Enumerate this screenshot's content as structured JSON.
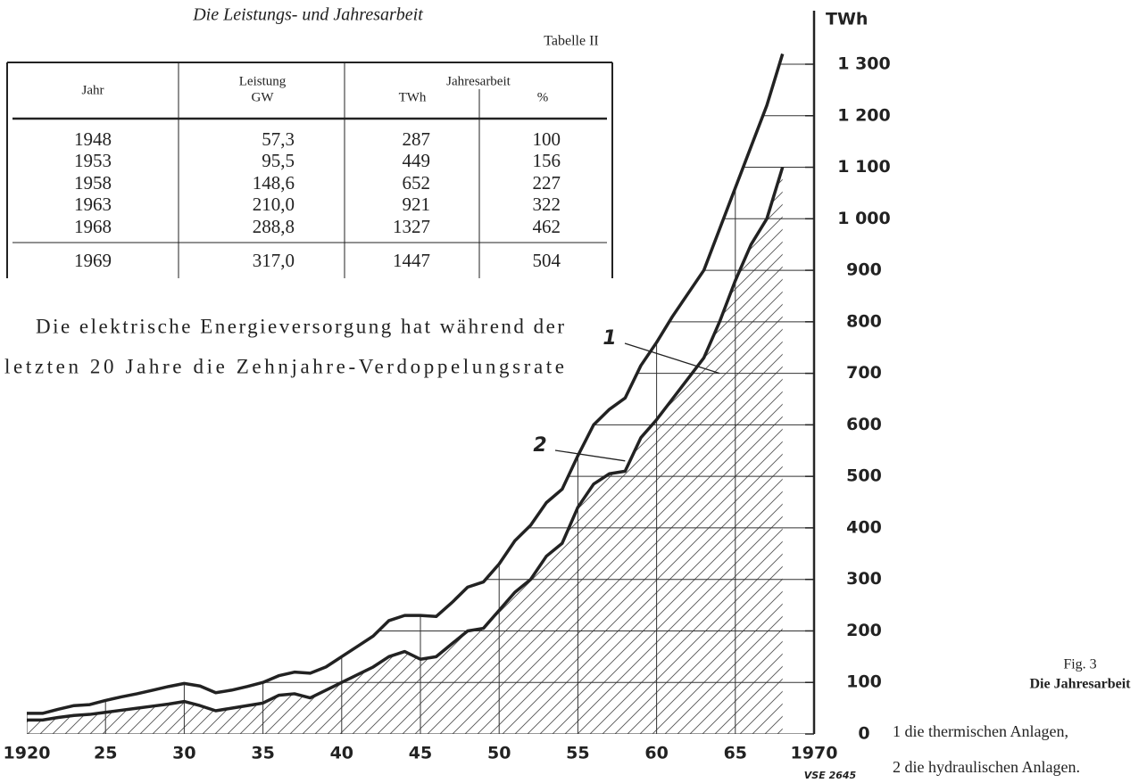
{
  "title": "Die Leistungs- und Jahresarbeit",
  "table_label": "Tabelle II",
  "table": {
    "header": {
      "year": "Jahr",
      "power": "Leistung",
      "power_unit": "GW",
      "energy": "Jahresarbeit",
      "energy_unit": "TWh",
      "percent": "%"
    },
    "rows": [
      [
        "1948",
        "57,3",
        "287",
        "100"
      ],
      [
        "1953",
        "95,5",
        "449",
        "156"
      ],
      [
        "1958",
        "148,6",
        "652",
        "227"
      ],
      [
        "1963",
        "210,0",
        "921",
        "322"
      ],
      [
        "1968",
        "288,8",
        "1327",
        "462"
      ],
      [
        "1969",
        "317,0",
        "1447",
        "504"
      ]
    ]
  },
  "paragraph": [
    "Die elektrische Energieversorgung hat während der",
    "letzten 20 Jahre die Zehnjahre-Verdoppelungsrate"
  ],
  "figure": {
    "number": "Fig. 3",
    "caption": "Die Jahresarbeit",
    "legend": [
      "1 die thermischen Anlagen,",
      "2 die hydraulischen Anlagen."
    ],
    "code": "VSE 2645"
  },
  "chart_data": {
    "type": "line",
    "y_unit": "TWh",
    "x": [
      1920,
      1921,
      1922,
      1923,
      1924,
      1925,
      1926,
      1927,
      1928,
      1929,
      1930,
      1931,
      1932,
      1933,
      1934,
      1935,
      1936,
      1937,
      1938,
      1939,
      1940,
      1941,
      1942,
      1943,
      1944,
      1945,
      1946,
      1947,
      1948,
      1949,
      1950,
      1951,
      1952,
      1953,
      1954,
      1955,
      1956,
      1957,
      1958,
      1959,
      1960,
      1961,
      1962,
      1963,
      1964,
      1965,
      1966,
      1967,
      1968
    ],
    "series": [
      {
        "color": "#222222",
        "values": [
          40,
          40,
          48,
          55,
          57,
          65,
          72,
          78,
          85,
          92,
          98,
          93,
          80,
          85,
          92,
          100,
          113,
          120,
          118,
          130,
          150,
          170,
          190,
          220,
          230,
          230,
          228,
          255,
          285,
          295,
          330,
          375,
          405,
          449,
          475,
          540,
          600,
          630,
          652,
          715,
          760,
          810,
          855,
          900,
          980,
          1060,
          1140,
          1220,
          1320
        ]
      },
      {
        "color": "#222222",
        "values": [
          27,
          27,
          32,
          36,
          38,
          42,
          46,
          50,
          54,
          58,
          63,
          55,
          45,
          50,
          55,
          60,
          75,
          78,
          70,
          85,
          100,
          115,
          130,
          150,
          160,
          145,
          150,
          175,
          200,
          205,
          240,
          275,
          300,
          345,
          370,
          440,
          485,
          505,
          510,
          575,
          610,
          650,
          690,
          730,
          800,
          880,
          950,
          1000,
          1100
        ]
      }
    ],
    "annotations": [
      {
        "text": "1",
        "x": 1964,
        "y": 700
      },
      {
        "text": "2",
        "x": 1958,
        "y": 530
      }
    ],
    "xlim": [
      1920,
      1970
    ],
    "ylim": [
      0,
      1300
    ],
    "xticks": [
      1920,
      {
        "value": 1925,
        "label": "25"
      },
      {
        "value": 1930,
        "label": "30"
      },
      {
        "value": 1935,
        "label": "35"
      },
      {
        "value": 1940,
        "label": "40"
      },
      {
        "value": 1945,
        "label": "45"
      },
      {
        "value": 1950,
        "label": "50"
      },
      {
        "value": 1955,
        "label": "55"
      },
      {
        "value": 1960,
        "label": "60"
      },
      {
        "value": 1965,
        "label": "65"
      },
      1970
    ],
    "yticks": [
      0,
      100,
      200,
      300,
      400,
      500,
      600,
      700,
      800,
      900,
      {
        "value": 1000,
        "label": "1 000"
      },
      {
        "value": 1100,
        "label": "1 100"
      },
      {
        "value": 1200,
        "label": "1 200"
      },
      {
        "value": 1300,
        "label": "1 300"
      }
    ],
    "grid": true,
    "hatch": true
  }
}
